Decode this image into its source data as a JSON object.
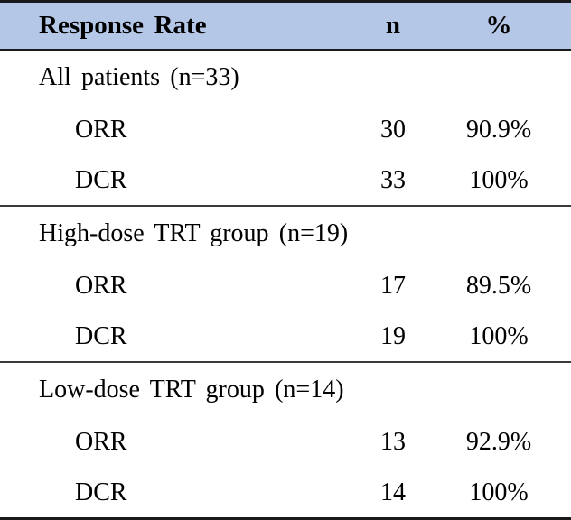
{
  "table": {
    "header": {
      "metric": "Response Rate",
      "n": "n",
      "pct": "%"
    },
    "sections": [
      {
        "label": "All patients (n=33)",
        "rows": [
          {
            "metric": "ORR",
            "n": "30",
            "pct": "90.9%"
          },
          {
            "metric": "DCR",
            "n": "33",
            "pct": "100%"
          }
        ]
      },
      {
        "label": "High-dose TRT group (n=19)",
        "rows": [
          {
            "metric": "ORR",
            "n": "17",
            "pct": "89.5%"
          },
          {
            "metric": "DCR",
            "n": "19",
            "pct": "100%"
          }
        ]
      },
      {
        "label": "Low-dose TRT group (n=14)",
        "rows": [
          {
            "metric": "ORR",
            "n": "13",
            "pct": "92.9%"
          },
          {
            "metric": "DCR",
            "n": "14",
            "pct": "100%"
          }
        ]
      }
    ]
  },
  "colors": {
    "header_bg": "#b4c7e7",
    "border_dark": "#1a1a1a",
    "divider": "#3a3a3a",
    "text": "#000000",
    "page_bg": "#ffffff"
  }
}
